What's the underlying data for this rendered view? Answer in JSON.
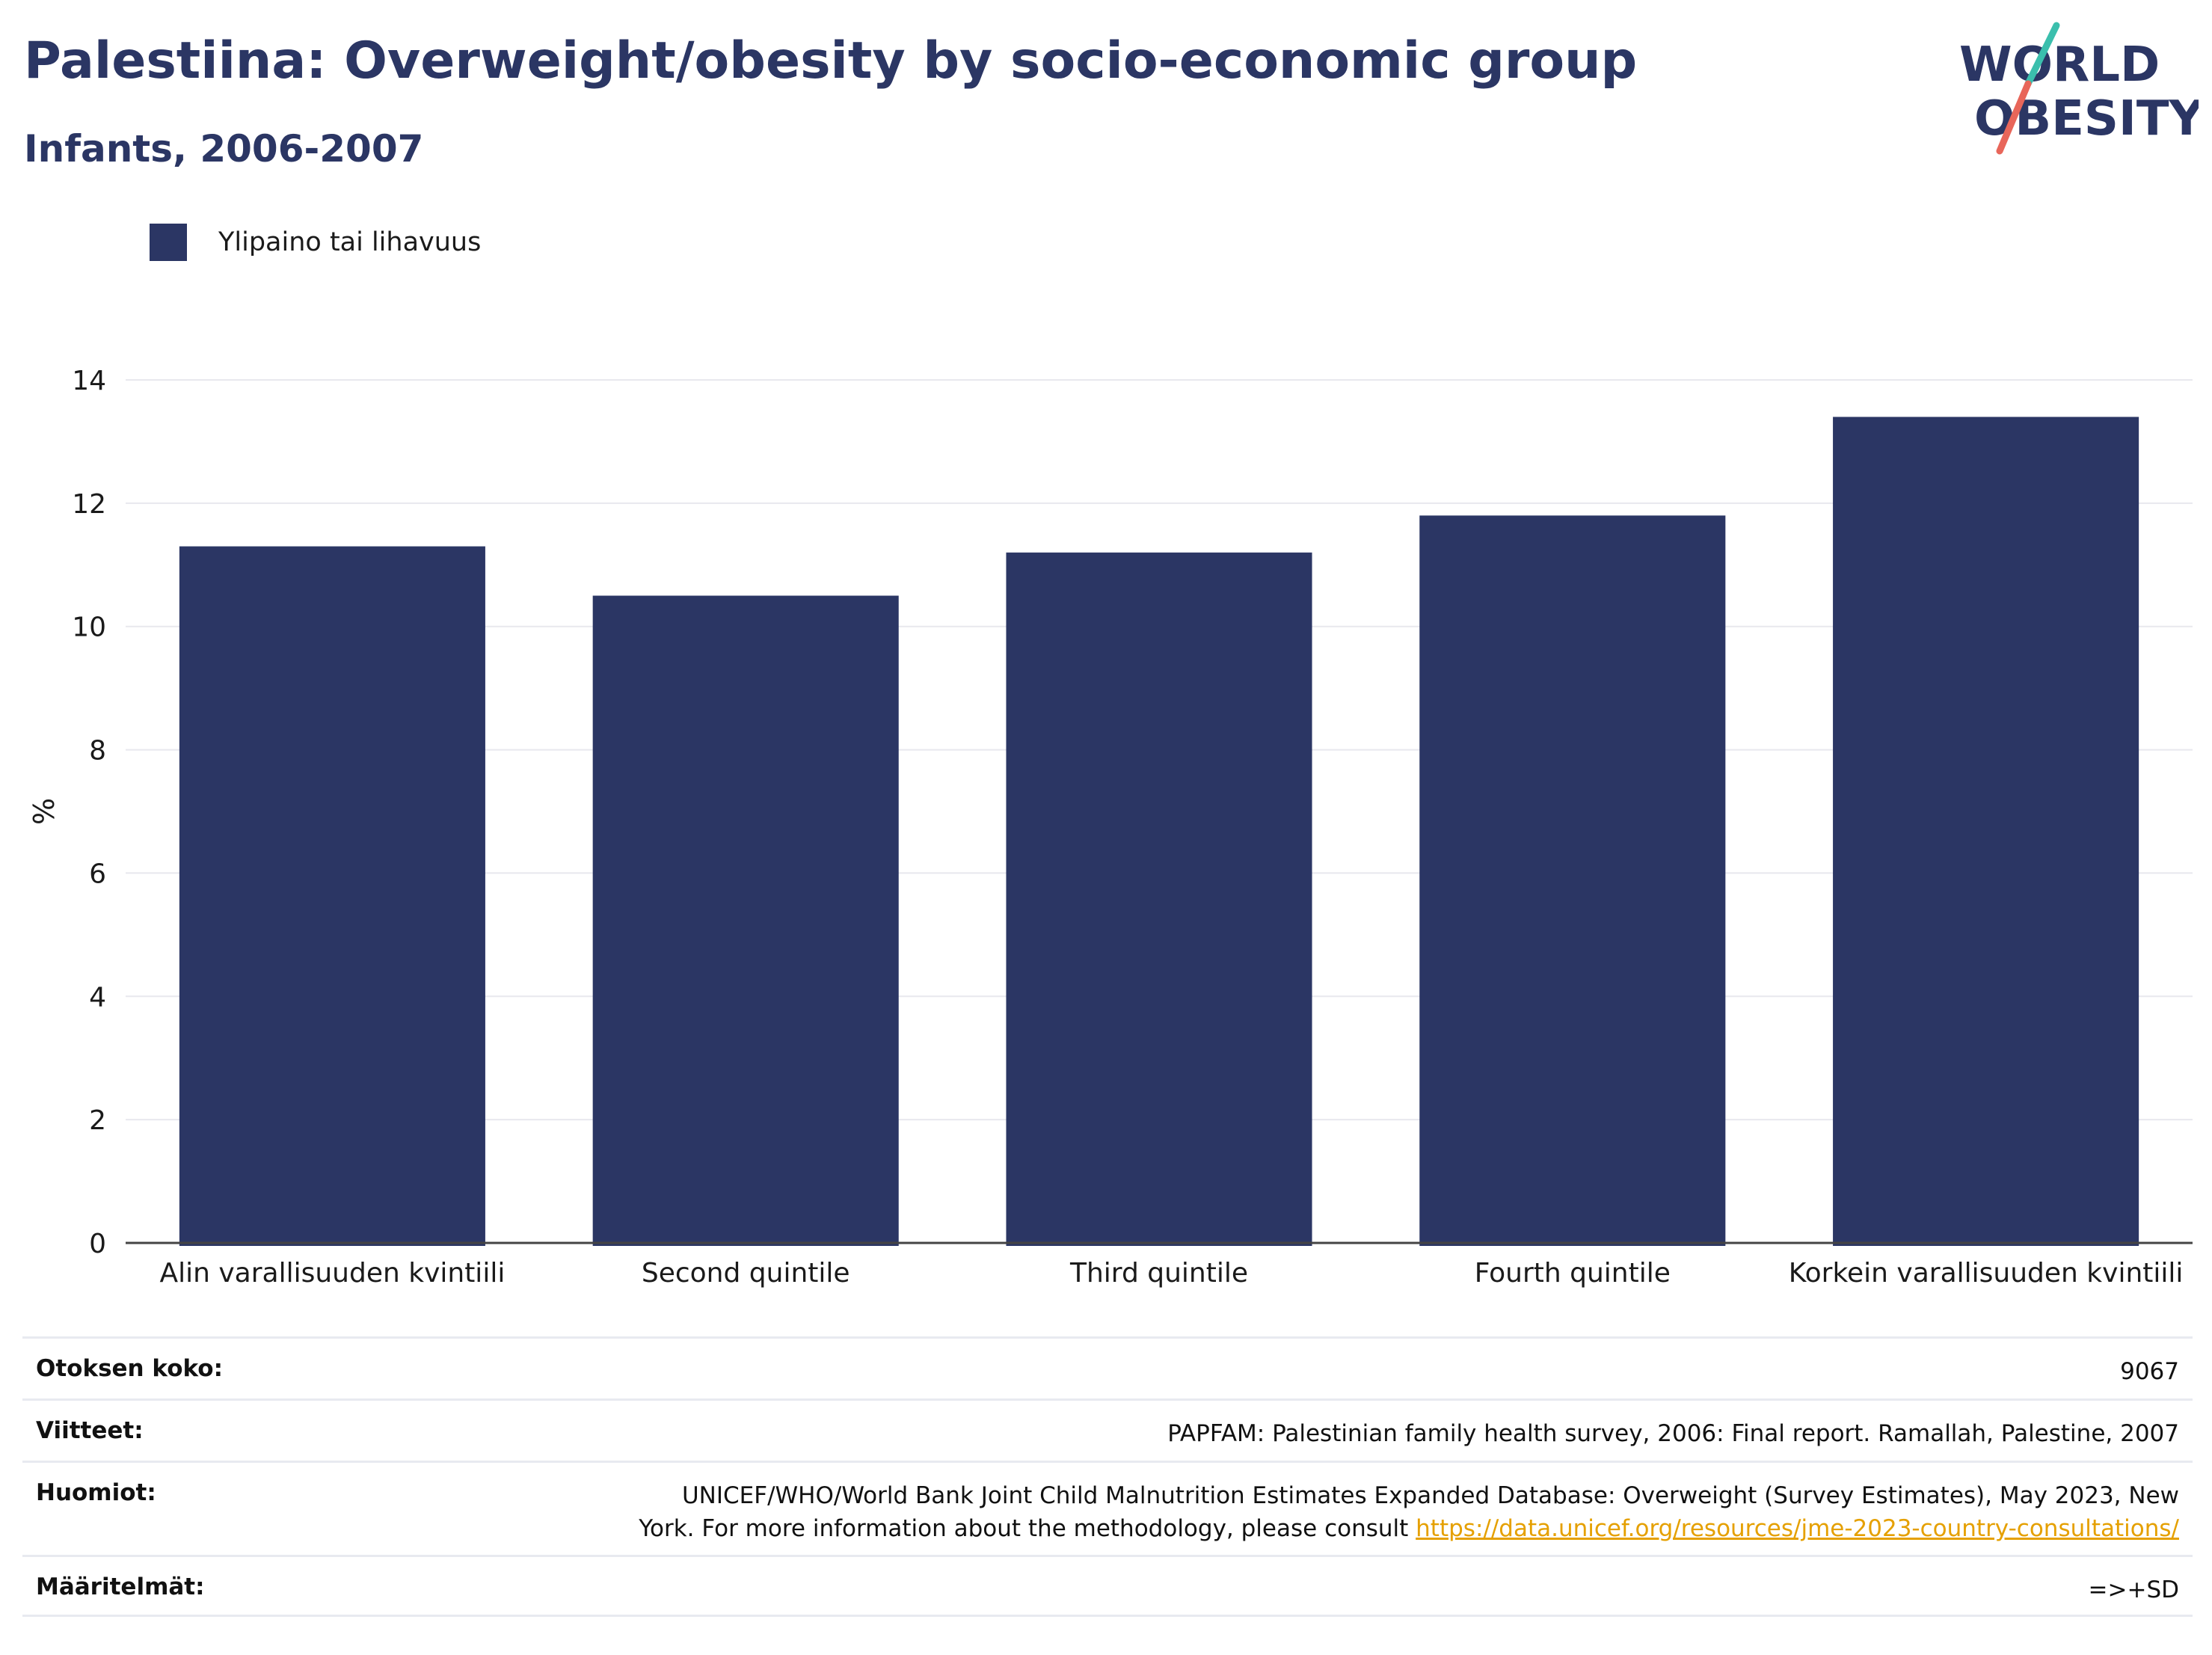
{
  "header": {
    "title": "Palestiina: Overweight/obesity by socio-economic group",
    "subtitle": "Infants, 2006-2007"
  },
  "logo": {
    "line1": "WORLD",
    "line2": "OBESITY",
    "accent_teal": "#3bbfad",
    "accent_coral": "#e8665a"
  },
  "colors": {
    "bar": "#2b3664",
    "title": "#2b3664"
  },
  "chart_data": {
    "type": "bar",
    "categories": [
      "Alin varallisuuden kvintiili",
      "Second quintile",
      "Third quintile",
      "Fourth quintile",
      "Korkein varallisuuden kvintiili"
    ],
    "series": [
      {
        "name": "Ylipaino tai lihavuus",
        "values": [
          11.3,
          10.5,
          11.2,
          11.8,
          13.4
        ]
      }
    ],
    "xlabel": "",
    "ylabel": "%",
    "ylim": [
      0,
      14
    ],
    "yticks": [
      0,
      2,
      4,
      6,
      8,
      10,
      12,
      14
    ],
    "grid": true,
    "legend": "top-left"
  },
  "info": {
    "sample_size_label": "Otoksen koko:",
    "sample_size_value": "9067",
    "references_label": "Viitteet:",
    "references_value": "PAPFAM: Palestinian family health survey, 2006: Final report. Ramallah, Palestine, 2007",
    "notes_label": "Huomiot:",
    "notes_line1": "UNICEF/WHO/World Bank Joint Child Malnutrition Estimates Expanded Database: Overweight (Survey Estimates), May 2023, New",
    "notes_line2": "York. For more information about the methodology, please consult ",
    "notes_link": "https://data.unicef.org/resources/jme-2023-country-consultations/",
    "definitions_label": "Määritelmät:",
    "definitions_value": "=>+SD"
  }
}
